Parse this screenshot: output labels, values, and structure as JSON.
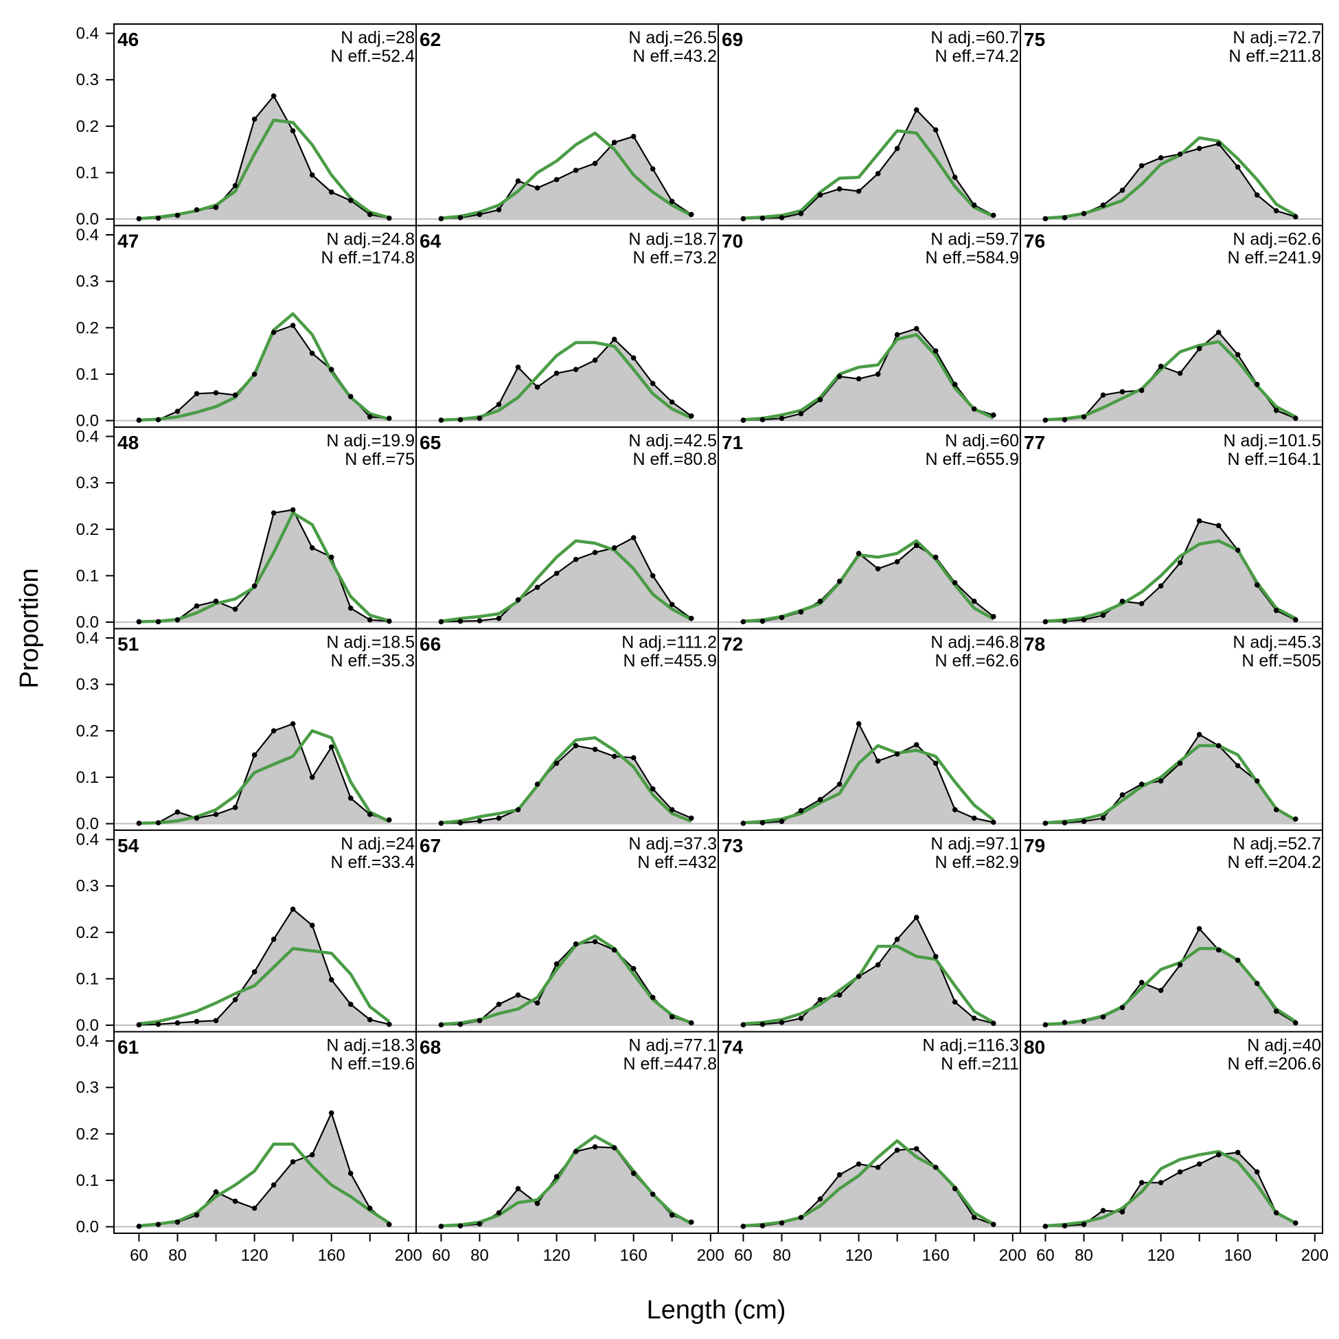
{
  "chart_data": {
    "type": "area",
    "xlabel": "Length (cm)",
    "ylabel": "Proportion",
    "xlim": [
      47,
      204
    ],
    "ylim": [
      -0.014,
      0.42
    ],
    "x_ticks": [
      60,
      80,
      120,
      160,
      200
    ],
    "y_ticks": [
      0.0,
      0.1,
      0.2,
      0.3,
      0.4
    ],
    "y_tick_labels": [
      "0.0",
      "0.1",
      "0.2",
      "0.3",
      "0.4"
    ],
    "x": [
      60,
      70,
      80,
      90,
      100,
      110,
      120,
      130,
      140,
      150,
      160,
      170,
      180,
      190
    ],
    "layout": "6 rows x 4 columns, column-major order",
    "colors": {
      "observed_fill": "#c8c8c8",
      "observed_line": "#000000",
      "expected_line": "#4a9c45",
      "zero_line": "#bdbdbd"
    },
    "panels": [
      {
        "year": "46",
        "n_adj": "N adj.=28",
        "n_eff": "N eff.=52.4",
        "observed": [
          0.001,
          0.002,
          0.008,
          0.02,
          0.025,
          0.072,
          0.215,
          0.265,
          0.19,
          0.095,
          0.058,
          0.04,
          0.01,
          0.002
        ],
        "expected": [
          0.001,
          0.004,
          0.01,
          0.018,
          0.03,
          0.06,
          0.14,
          0.213,
          0.208,
          0.16,
          0.095,
          0.045,
          0.015,
          0.003
        ]
      },
      {
        "year": "47",
        "n_adj": "N adj.=24.8",
        "n_eff": "N eff.=174.8",
        "observed": [
          0.001,
          0.002,
          0.02,
          0.058,
          0.06,
          0.055,
          0.1,
          0.19,
          0.205,
          0.145,
          0.11,
          0.052,
          0.008,
          0.005
        ],
        "expected": [
          0.001,
          0.003,
          0.008,
          0.018,
          0.03,
          0.05,
          0.1,
          0.195,
          0.23,
          0.185,
          0.105,
          0.05,
          0.015,
          0.003
        ]
      },
      {
        "year": "48",
        "n_adj": "N adj.=19.9",
        "n_eff": "N eff.=75",
        "observed": [
          0.001,
          0.001,
          0.005,
          0.035,
          0.045,
          0.028,
          0.078,
          0.235,
          0.242,
          0.16,
          0.14,
          0.03,
          0.005,
          0.002
        ],
        "expected": [
          0.001,
          0.002,
          0.006,
          0.02,
          0.04,
          0.05,
          0.075,
          0.15,
          0.235,
          0.21,
          0.13,
          0.055,
          0.015,
          0.003
        ]
      },
      {
        "year": "51",
        "n_adj": "N adj.=18.5",
        "n_eff": "N eff.=35.3",
        "observed": [
          0.001,
          0.002,
          0.025,
          0.012,
          0.02,
          0.035,
          0.148,
          0.2,
          0.215,
          0.1,
          0.165,
          0.055,
          0.02,
          0.008
        ],
        "expected": [
          0.001,
          0.002,
          0.006,
          0.015,
          0.03,
          0.06,
          0.11,
          0.128,
          0.145,
          0.2,
          0.185,
          0.09,
          0.025,
          0.005
        ]
      },
      {
        "year": "54",
        "n_adj": "N adj.=24",
        "n_eff": "N eff.=33.4",
        "observed": [
          0.001,
          0.002,
          0.005,
          0.008,
          0.01,
          0.055,
          0.115,
          0.185,
          0.25,
          0.215,
          0.098,
          0.045,
          0.012,
          0.002
        ],
        "expected": [
          0.003,
          0.008,
          0.018,
          0.03,
          0.048,
          0.068,
          0.085,
          0.125,
          0.165,
          0.16,
          0.155,
          0.11,
          0.04,
          0.008
        ]
      },
      {
        "year": "61",
        "n_adj": "N adj.=18.3",
        "n_eff": "N eff.=19.6",
        "observed": [
          0.001,
          0.005,
          0.01,
          0.025,
          0.075,
          0.055,
          0.04,
          0.09,
          0.14,
          0.155,
          0.245,
          0.115,
          0.04,
          0.005
        ],
        "expected": [
          0.002,
          0.006,
          0.012,
          0.03,
          0.065,
          0.09,
          0.12,
          0.178,
          0.178,
          0.13,
          0.09,
          0.065,
          0.035,
          0.008
        ]
      },
      {
        "year": "62",
        "n_adj": "N adj.=26.5",
        "n_eff": "N eff.=43.2",
        "observed": [
          0.001,
          0.003,
          0.01,
          0.02,
          0.082,
          0.067,
          0.085,
          0.105,
          0.12,
          0.165,
          0.178,
          0.108,
          0.038,
          0.01
        ],
        "expected": [
          0.002,
          0.006,
          0.015,
          0.03,
          0.06,
          0.1,
          0.125,
          0.16,
          0.185,
          0.15,
          0.095,
          0.058,
          0.03,
          0.008
        ]
      },
      {
        "year": "64",
        "n_adj": "N adj.=18.7",
        "n_eff": "N eff.=73.2",
        "observed": [
          0.001,
          0.002,
          0.005,
          0.035,
          0.115,
          0.072,
          0.102,
          0.11,
          0.13,
          0.175,
          0.135,
          0.08,
          0.04,
          0.01
        ],
        "expected": [
          0.001,
          0.003,
          0.008,
          0.022,
          0.05,
          0.095,
          0.14,
          0.168,
          0.168,
          0.16,
          0.11,
          0.058,
          0.025,
          0.006
        ]
      },
      {
        "year": "65",
        "n_adj": "N adj.=42.5",
        "n_eff": "N eff.=80.8",
        "observed": [
          0.001,
          0.002,
          0.003,
          0.008,
          0.048,
          0.075,
          0.105,
          0.135,
          0.15,
          0.16,
          0.182,
          0.1,
          0.038,
          0.008
        ],
        "expected": [
          0.002,
          0.008,
          0.012,
          0.018,
          0.045,
          0.095,
          0.14,
          0.175,
          0.17,
          0.155,
          0.115,
          0.06,
          0.028,
          0.006
        ]
      },
      {
        "year": "66",
        "n_adj": "N adj.=111.2",
        "n_eff": "N eff.=455.9",
        "observed": [
          0.001,
          0.002,
          0.006,
          0.012,
          0.03,
          0.085,
          0.13,
          0.168,
          0.16,
          0.145,
          0.142,
          0.075,
          0.03,
          0.012
        ],
        "expected": [
          0.002,
          0.006,
          0.015,
          0.022,
          0.03,
          0.082,
          0.138,
          0.18,
          0.185,
          0.158,
          0.122,
          0.062,
          0.022,
          0.005
        ]
      },
      {
        "year": "67",
        "n_adj": "N adj.=37.3",
        "n_eff": "N eff.=432",
        "observed": [
          0.001,
          0.002,
          0.01,
          0.045,
          0.065,
          0.048,
          0.132,
          0.175,
          0.18,
          0.162,
          0.122,
          0.06,
          0.018,
          0.005
        ],
        "expected": [
          0.002,
          0.005,
          0.012,
          0.025,
          0.035,
          0.06,
          0.12,
          0.172,
          0.192,
          0.165,
          0.11,
          0.055,
          0.022,
          0.005
        ]
      },
      {
        "year": "68",
        "n_adj": "N adj.=77.1",
        "n_eff": "N eff.=447.8",
        "observed": [
          0.001,
          0.002,
          0.006,
          0.03,
          0.082,
          0.05,
          0.108,
          0.162,
          0.172,
          0.17,
          0.115,
          0.07,
          0.025,
          0.01
        ],
        "expected": [
          0.002,
          0.004,
          0.01,
          0.025,
          0.052,
          0.058,
          0.1,
          0.165,
          0.195,
          0.172,
          0.12,
          0.07,
          0.03,
          0.007
        ]
      },
      {
        "year": "69",
        "n_adj": "N adj.=60.7",
        "n_eff": "N eff.=74.2",
        "observed": [
          0.001,
          0.002,
          0.003,
          0.012,
          0.052,
          0.065,
          0.06,
          0.098,
          0.152,
          0.235,
          0.192,
          0.09,
          0.03,
          0.008
        ],
        "expected": [
          0.002,
          0.004,
          0.008,
          0.018,
          0.058,
          0.088,
          0.09,
          0.14,
          0.19,
          0.185,
          0.13,
          0.07,
          0.025,
          0.006
        ]
      },
      {
        "year": "70",
        "n_adj": "N adj.=59.7",
        "n_eff": "N eff.=584.9",
        "observed": [
          0.001,
          0.002,
          0.005,
          0.015,
          0.045,
          0.095,
          0.09,
          0.1,
          0.185,
          0.198,
          0.15,
          0.078,
          0.025,
          0.012
        ],
        "expected": [
          0.002,
          0.005,
          0.012,
          0.022,
          0.05,
          0.1,
          0.115,
          0.12,
          0.175,
          0.185,
          0.14,
          0.07,
          0.025,
          0.006
        ]
      },
      {
        "year": "71",
        "n_adj": "N adj.=60",
        "n_eff": "N eff.=655.9",
        "observed": [
          0.001,
          0.002,
          0.01,
          0.022,
          0.045,
          0.088,
          0.148,
          0.115,
          0.13,
          0.165,
          0.14,
          0.085,
          0.045,
          0.012
        ],
        "expected": [
          0.002,
          0.005,
          0.012,
          0.025,
          0.04,
          0.085,
          0.145,
          0.14,
          0.148,
          0.175,
          0.135,
          0.08,
          0.03,
          0.007
        ]
      },
      {
        "year": "72",
        "n_adj": "N adj.=46.8",
        "n_eff": "N eff.=62.6",
        "observed": [
          0.001,
          0.002,
          0.005,
          0.028,
          0.052,
          0.085,
          0.215,
          0.135,
          0.15,
          0.17,
          0.13,
          0.03,
          0.012,
          0.003
        ],
        "expected": [
          0.002,
          0.005,
          0.01,
          0.022,
          0.045,
          0.065,
          0.13,
          0.168,
          0.152,
          0.158,
          0.145,
          0.09,
          0.04,
          0.008
        ]
      },
      {
        "year": "73",
        "n_adj": "N adj.=97.1",
        "n_eff": "N eff.=82.9",
        "observed": [
          0.001,
          0.002,
          0.006,
          0.015,
          0.055,
          0.065,
          0.105,
          0.13,
          0.185,
          0.232,
          0.148,
          0.05,
          0.015,
          0.004
        ],
        "expected": [
          0.003,
          0.006,
          0.012,
          0.025,
          0.045,
          0.075,
          0.105,
          0.17,
          0.17,
          0.148,
          0.142,
          0.085,
          0.03,
          0.006
        ]
      },
      {
        "year": "74",
        "n_adj": "N adj.=116.3",
        "n_eff": "N eff.=211",
        "observed": [
          0.001,
          0.002,
          0.008,
          0.02,
          0.06,
          0.112,
          0.135,
          0.128,
          0.165,
          0.168,
          0.128,
          0.082,
          0.02,
          0.005
        ],
        "expected": [
          0.002,
          0.005,
          0.01,
          0.02,
          0.045,
          0.082,
          0.11,
          0.15,
          0.185,
          0.15,
          0.128,
          0.085,
          0.03,
          0.006
        ]
      },
      {
        "year": "75",
        "n_adj": "N adj.=72.7",
        "n_eff": "N eff.=211.8",
        "observed": [
          0.001,
          0.003,
          0.012,
          0.03,
          0.062,
          0.115,
          0.132,
          0.14,
          0.152,
          0.162,
          0.112,
          0.052,
          0.018,
          0.005
        ],
        "expected": [
          0.002,
          0.005,
          0.012,
          0.025,
          0.04,
          0.075,
          0.118,
          0.138,
          0.175,
          0.168,
          0.13,
          0.085,
          0.032,
          0.008
        ]
      },
      {
        "year": "76",
        "n_adj": "N adj.=62.6",
        "n_eff": "N eff.=241.9",
        "observed": [
          0.001,
          0.002,
          0.008,
          0.055,
          0.062,
          0.065,
          0.117,
          0.102,
          0.155,
          0.19,
          0.142,
          0.078,
          0.022,
          0.005
        ],
        "expected": [
          0.002,
          0.004,
          0.01,
          0.028,
          0.048,
          0.068,
          0.11,
          0.148,
          0.162,
          0.17,
          0.128,
          0.075,
          0.03,
          0.008
        ]
      },
      {
        "year": "77",
        "n_adj": "N adj.=101.5",
        "n_eff": "N eff.=164.1",
        "observed": [
          0.001,
          0.002,
          0.005,
          0.015,
          0.045,
          0.04,
          0.078,
          0.128,
          0.218,
          0.208,
          0.155,
          0.08,
          0.025,
          0.005
        ],
        "expected": [
          0.002,
          0.005,
          0.01,
          0.022,
          0.04,
          0.065,
          0.1,
          0.142,
          0.168,
          0.175,
          0.155,
          0.085,
          0.03,
          0.008
        ]
      },
      {
        "year": "78",
        "n_adj": "N adj.=45.3",
        "n_eff": "N eff.=505",
        "observed": [
          0.001,
          0.002,
          0.005,
          0.012,
          0.062,
          0.085,
          0.092,
          0.13,
          0.192,
          0.168,
          0.125,
          0.092,
          0.03,
          0.01
        ],
        "expected": [
          0.002,
          0.005,
          0.01,
          0.02,
          0.05,
          0.08,
          0.1,
          0.135,
          0.168,
          0.168,
          0.148,
          0.09,
          0.032,
          0.008
        ]
      },
      {
        "year": "79",
        "n_adj": "N adj.=52.7",
        "n_eff": "N eff.=204.2",
        "observed": [
          0.001,
          0.006,
          0.008,
          0.018,
          0.038,
          0.092,
          0.075,
          0.13,
          0.208,
          0.162,
          0.14,
          0.09,
          0.03,
          0.005
        ],
        "expected": [
          0.002,
          0.004,
          0.01,
          0.02,
          0.04,
          0.08,
          0.12,
          0.135,
          0.165,
          0.165,
          0.14,
          0.09,
          0.035,
          0.008
        ]
      },
      {
        "year": "80",
        "n_adj": "N adj.=40",
        "n_eff": "N eff.=206.6",
        "observed": [
          0.001,
          0.002,
          0.005,
          0.035,
          0.032,
          0.095,
          0.095,
          0.118,
          0.135,
          0.155,
          0.16,
          0.118,
          0.03,
          0.008
        ],
        "expected": [
          0.002,
          0.005,
          0.01,
          0.02,
          0.04,
          0.075,
          0.125,
          0.145,
          0.155,
          0.162,
          0.14,
          0.09,
          0.03,
          0.008
        ]
      }
    ]
  }
}
